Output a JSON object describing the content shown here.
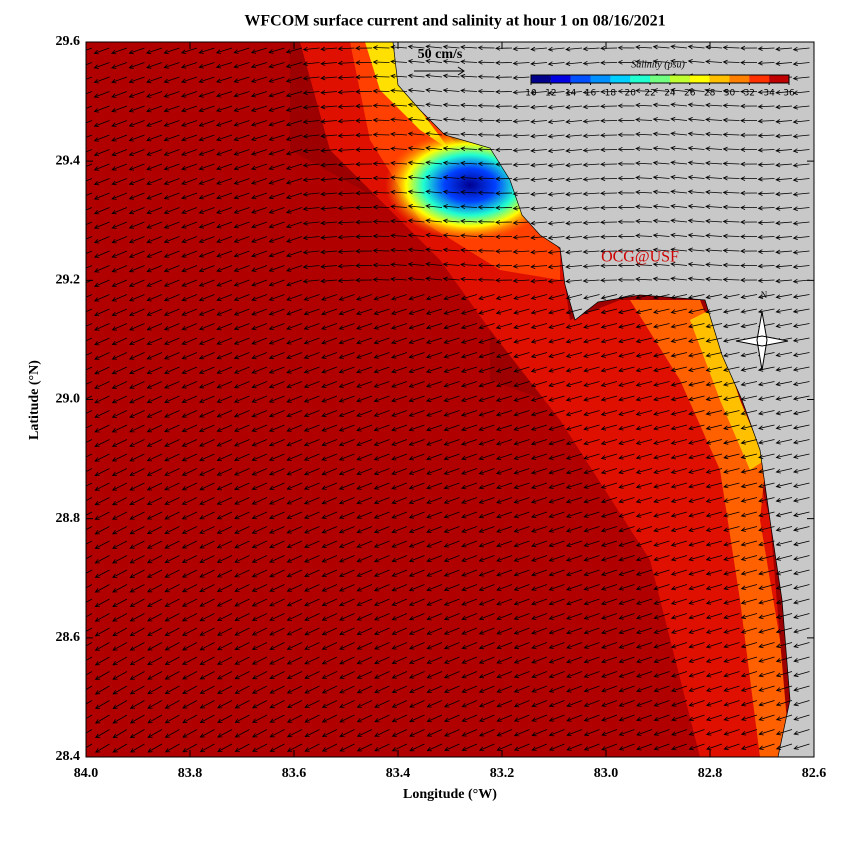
{
  "title": "WFCOM surface current and salinity at hour 1 on 08/16/2021",
  "map": {
    "xlabel": "Longitude (°W)",
    "ylabel": "Latitude (°N)",
    "xlim": [
      84.0,
      82.6
    ],
    "ylim": [
      28.4,
      29.6
    ],
    "xticks": [
      {
        "value": 84.0,
        "label": "84.0"
      },
      83.8,
      83.6,
      83.4,
      83.2,
      {
        "value": 83.0,
        "label": "83.0"
      },
      82.8,
      82.6
    ],
    "yticks": [
      28.4,
      28.6,
      28.8,
      {
        "value": 29.0,
        "label": "29.0"
      },
      29.2,
      29.4,
      29.6
    ],
    "scale_label": "50 cm/s",
    "watermark": "OCG@USF",
    "north": "N"
  },
  "colorbar": {
    "title": "Salinity (psu)",
    "lim": [
      10,
      36
    ],
    "ticks": [
      10,
      12,
      14,
      16,
      18,
      20,
      22,
      24,
      26,
      28,
      30,
      32,
      34,
      36
    ],
    "colors": [
      "#00008b",
      "#0000e0",
      "#0050ff",
      "#0090ff",
      "#00d0ff",
      "#20ffd0",
      "#70ff80",
      "#c0ff30",
      "#ffff00",
      "#ffc000",
      "#ff8000",
      "#ff3000",
      "#c00000"
    ]
  }
}
